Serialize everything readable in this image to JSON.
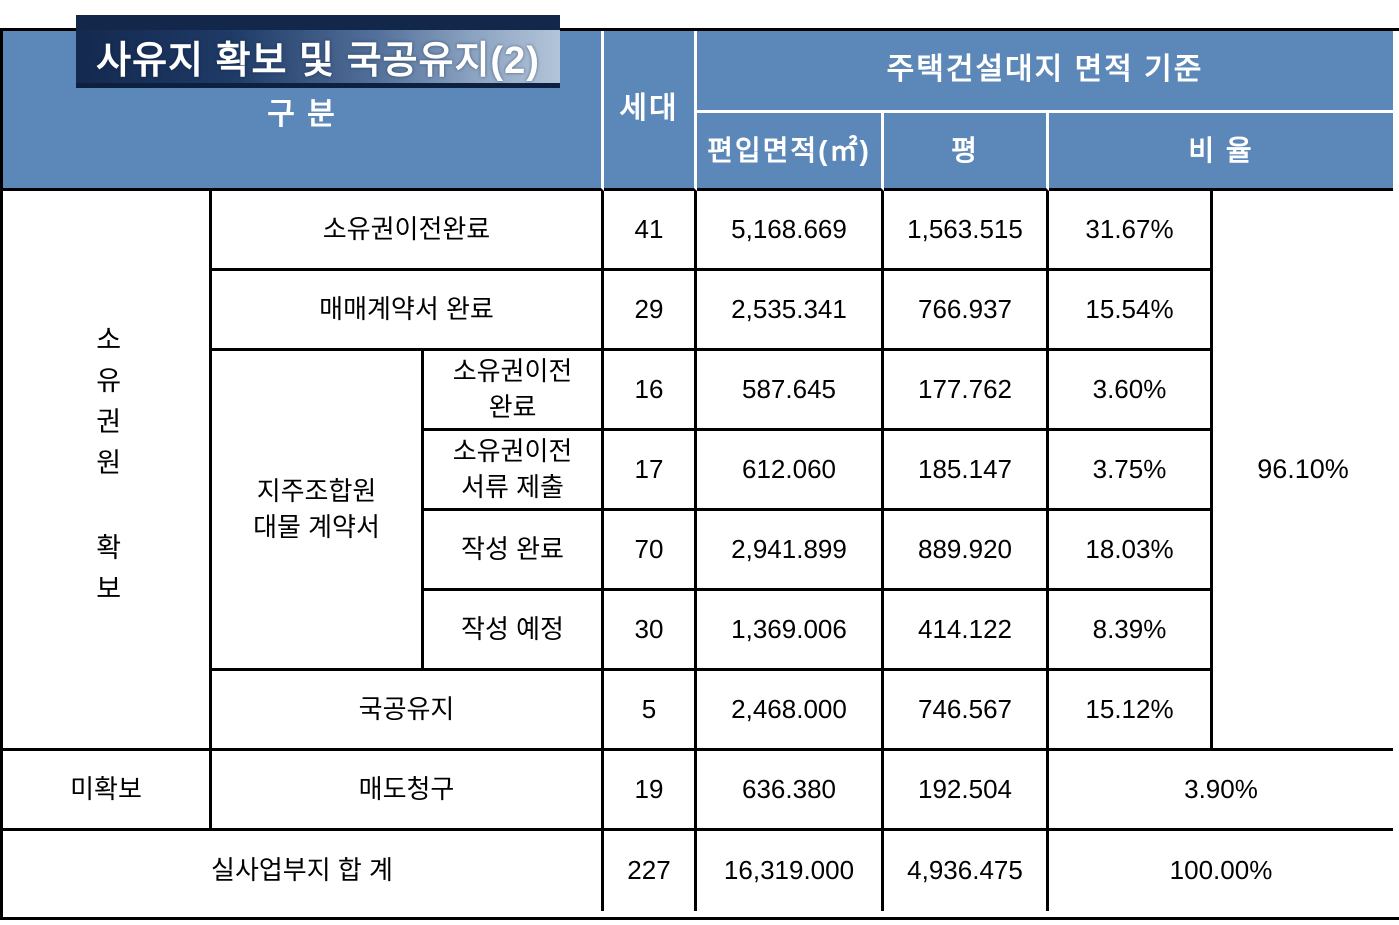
{
  "title": {
    "text": "사유지 확보 및 국공유지(2)"
  },
  "colors": {
    "header_blue": "#5b87b9",
    "title_navy": "#13274b",
    "title_gradient_start": "#14294f",
    "title_gradient_end": "#b3c4d8",
    "border_black": "#000000"
  },
  "header": {
    "category": "구  분",
    "households": "세대",
    "area_group": "주택건설대지 면적 기준",
    "sub_area": "편입면적(㎡)",
    "sub_pyeong": "평",
    "sub_ratio": "비 율"
  },
  "body": {
    "secured": {
      "label": "소유권원 확보",
      "group_ratio": "96.10%",
      "jiju_label": "지주조합원\n대물 계약서",
      "rows": [
        {
          "label": "소유권이전완료",
          "households": "41",
          "area": "5,168.669",
          "pyeong": "1,563.515",
          "ratio": "31.67%"
        },
        {
          "label": "매매계약서 완료",
          "households": "29",
          "area": "2,535.341",
          "pyeong": "766.937",
          "ratio": "15.54%"
        },
        {
          "label": "소유권이전\n완료",
          "households": "16",
          "area": "587.645",
          "pyeong": "177.762",
          "ratio": "3.60%"
        },
        {
          "label": "소유권이전\n서류 제출",
          "households": "17",
          "area": "612.060",
          "pyeong": "185.147",
          "ratio": "3.75%"
        },
        {
          "label": "작성 완료",
          "households": "70",
          "area": "2,941.899",
          "pyeong": "889.920",
          "ratio": "18.03%"
        },
        {
          "label": "작성 예정",
          "households": "30",
          "area": "1,369.006",
          "pyeong": "414.122",
          "ratio": "8.39%"
        },
        {
          "label": "국공유지",
          "households": "5",
          "area": "2,468.000",
          "pyeong": "746.567",
          "ratio": "15.12%"
        }
      ]
    },
    "unsecured": {
      "label": "미확보",
      "row": {
        "label": "매도청구",
        "households": "19",
        "area": "636.380",
        "pyeong": "192.504",
        "ratio": "3.90%"
      }
    },
    "total": {
      "label": "실사업부지 합 계",
      "households": "227",
      "area": "16,319.000",
      "pyeong": "4,936.475",
      "ratio": "100.00%"
    }
  }
}
